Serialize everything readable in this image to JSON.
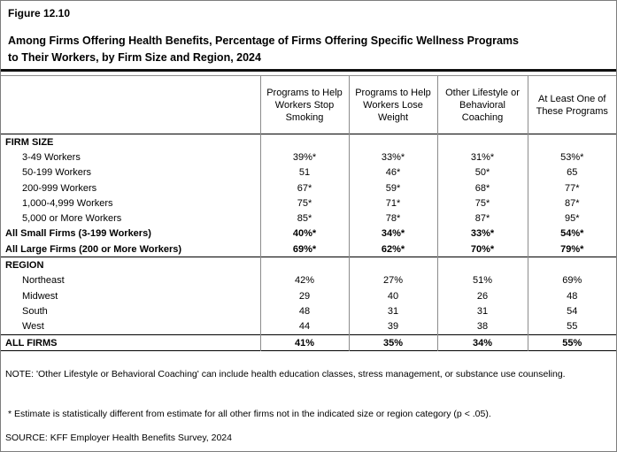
{
  "figure": {
    "number": "Figure 12.10",
    "title_line1": "Among Firms Offering Health Benefits, Percentage of Firms Offering Specific Wellness Programs",
    "title_line2": "to Their Workers, by Firm Size and Region, 2024"
  },
  "chart_data": {
    "type": "table",
    "title": "Among Firms Offering Health Benefits, Percentage of Firms Offering Specific Wellness Programs to Their Workers, by Firm Size and Region, 2024",
    "units": "percent of firms",
    "significance_marker": "* = statistically different (p < .05)",
    "columns": [
      "Programs to Help Workers Stop Smoking",
      "Programs to Help Workers Lose Weight",
      "Other Lifestyle or Behavioral Coaching",
      "At Least One of These Programs"
    ],
    "rows": [
      {
        "label": "FIRM SIZE",
        "type": "section",
        "indent": false,
        "values": [
          "",
          "",
          "",
          ""
        ]
      },
      {
        "label": "3-49 Workers",
        "type": "data",
        "indent": true,
        "values": [
          "39%*",
          "33%*",
          "31%*",
          "53%*"
        ]
      },
      {
        "label": "50-199 Workers",
        "type": "data",
        "indent": true,
        "values": [
          "51",
          "46*",
          "50*",
          "65"
        ]
      },
      {
        "label": "200-999 Workers",
        "type": "data",
        "indent": true,
        "values": [
          "67*",
          "59*",
          "68*",
          "77*"
        ]
      },
      {
        "label": "1,000-4,999 Workers",
        "type": "data",
        "indent": true,
        "values": [
          "75*",
          "71*",
          "75*",
          "87*"
        ]
      },
      {
        "label": "5,000 or More Workers",
        "type": "data",
        "indent": true,
        "values": [
          "85*",
          "78*",
          "87*",
          "95*"
        ]
      },
      {
        "label": "All Small Firms (3-199 Workers)",
        "type": "bold",
        "indent": false,
        "values": [
          "40%*",
          "34%*",
          "33%*",
          "54%*"
        ]
      },
      {
        "label": "All Large Firms (200 or More Workers)",
        "type": "bold",
        "indent": false,
        "values": [
          "69%*",
          "62%*",
          "70%*",
          "79%*"
        ]
      },
      {
        "label": "REGION",
        "type": "section",
        "indent": false,
        "values": [
          "",
          "",
          "",
          ""
        ]
      },
      {
        "label": "Northeast",
        "type": "data",
        "indent": true,
        "values": [
          "42%",
          "27%",
          "51%",
          "69%"
        ]
      },
      {
        "label": "Midwest",
        "type": "data",
        "indent": true,
        "values": [
          "29",
          "40",
          "26",
          "48"
        ]
      },
      {
        "label": "South",
        "type": "data",
        "indent": true,
        "values": [
          "48",
          "31",
          "31",
          "54"
        ]
      },
      {
        "label": "West",
        "type": "data",
        "indent": true,
        "values": [
          "44",
          "39",
          "38",
          "55"
        ]
      },
      {
        "label": "ALL FIRMS",
        "type": "total",
        "indent": false,
        "values": [
          "41%",
          "35%",
          "34%",
          "55%"
        ]
      }
    ]
  },
  "notes": {
    "note": "NOTE: 'Other Lifestyle or Behavioral Coaching' can include health education classes, stress management, or substance use counseling.",
    "significance": "* Estimate is statistically different from estimate for all other firms not in the indicated size or region category (p < .05).",
    "source": "SOURCE: KFF Employer Health Benefits Survey, 2024"
  }
}
